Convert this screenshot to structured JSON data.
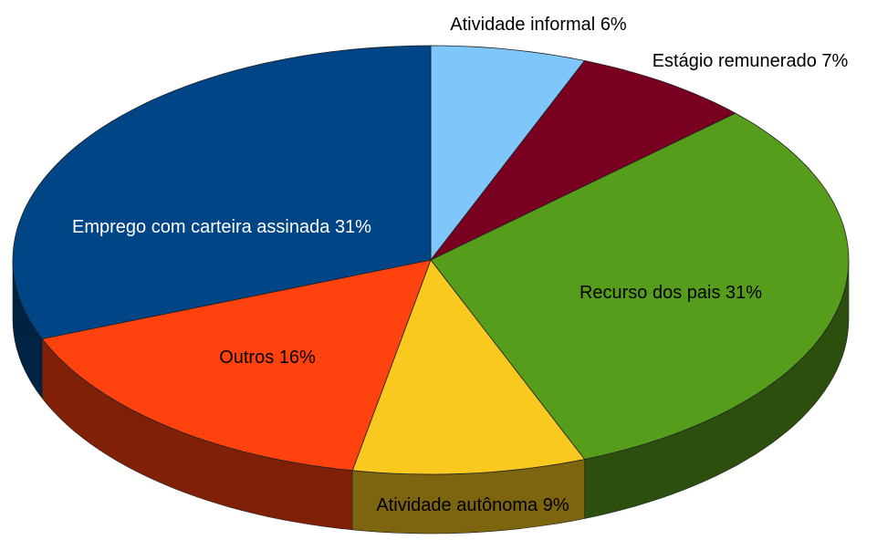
{
  "chart_data": {
    "type": "pie3d",
    "categories": [
      "Atividade informal",
      "Estágio remunerado",
      "Recurso dos pais",
      "Atividade autônoma",
      "Outros",
      "Emprego com carteira assinada"
    ],
    "values": [
      6,
      7,
      31,
      9,
      16,
      31
    ],
    "value_labels": [
      "6%",
      "7%",
      "31%",
      "9%",
      "16%",
      "31%"
    ],
    "colors": [
      "#7fc6fa",
      "#7a0021",
      "#579d1c",
      "#f9c91f",
      "#ff420e",
      "#004586"
    ]
  }
}
